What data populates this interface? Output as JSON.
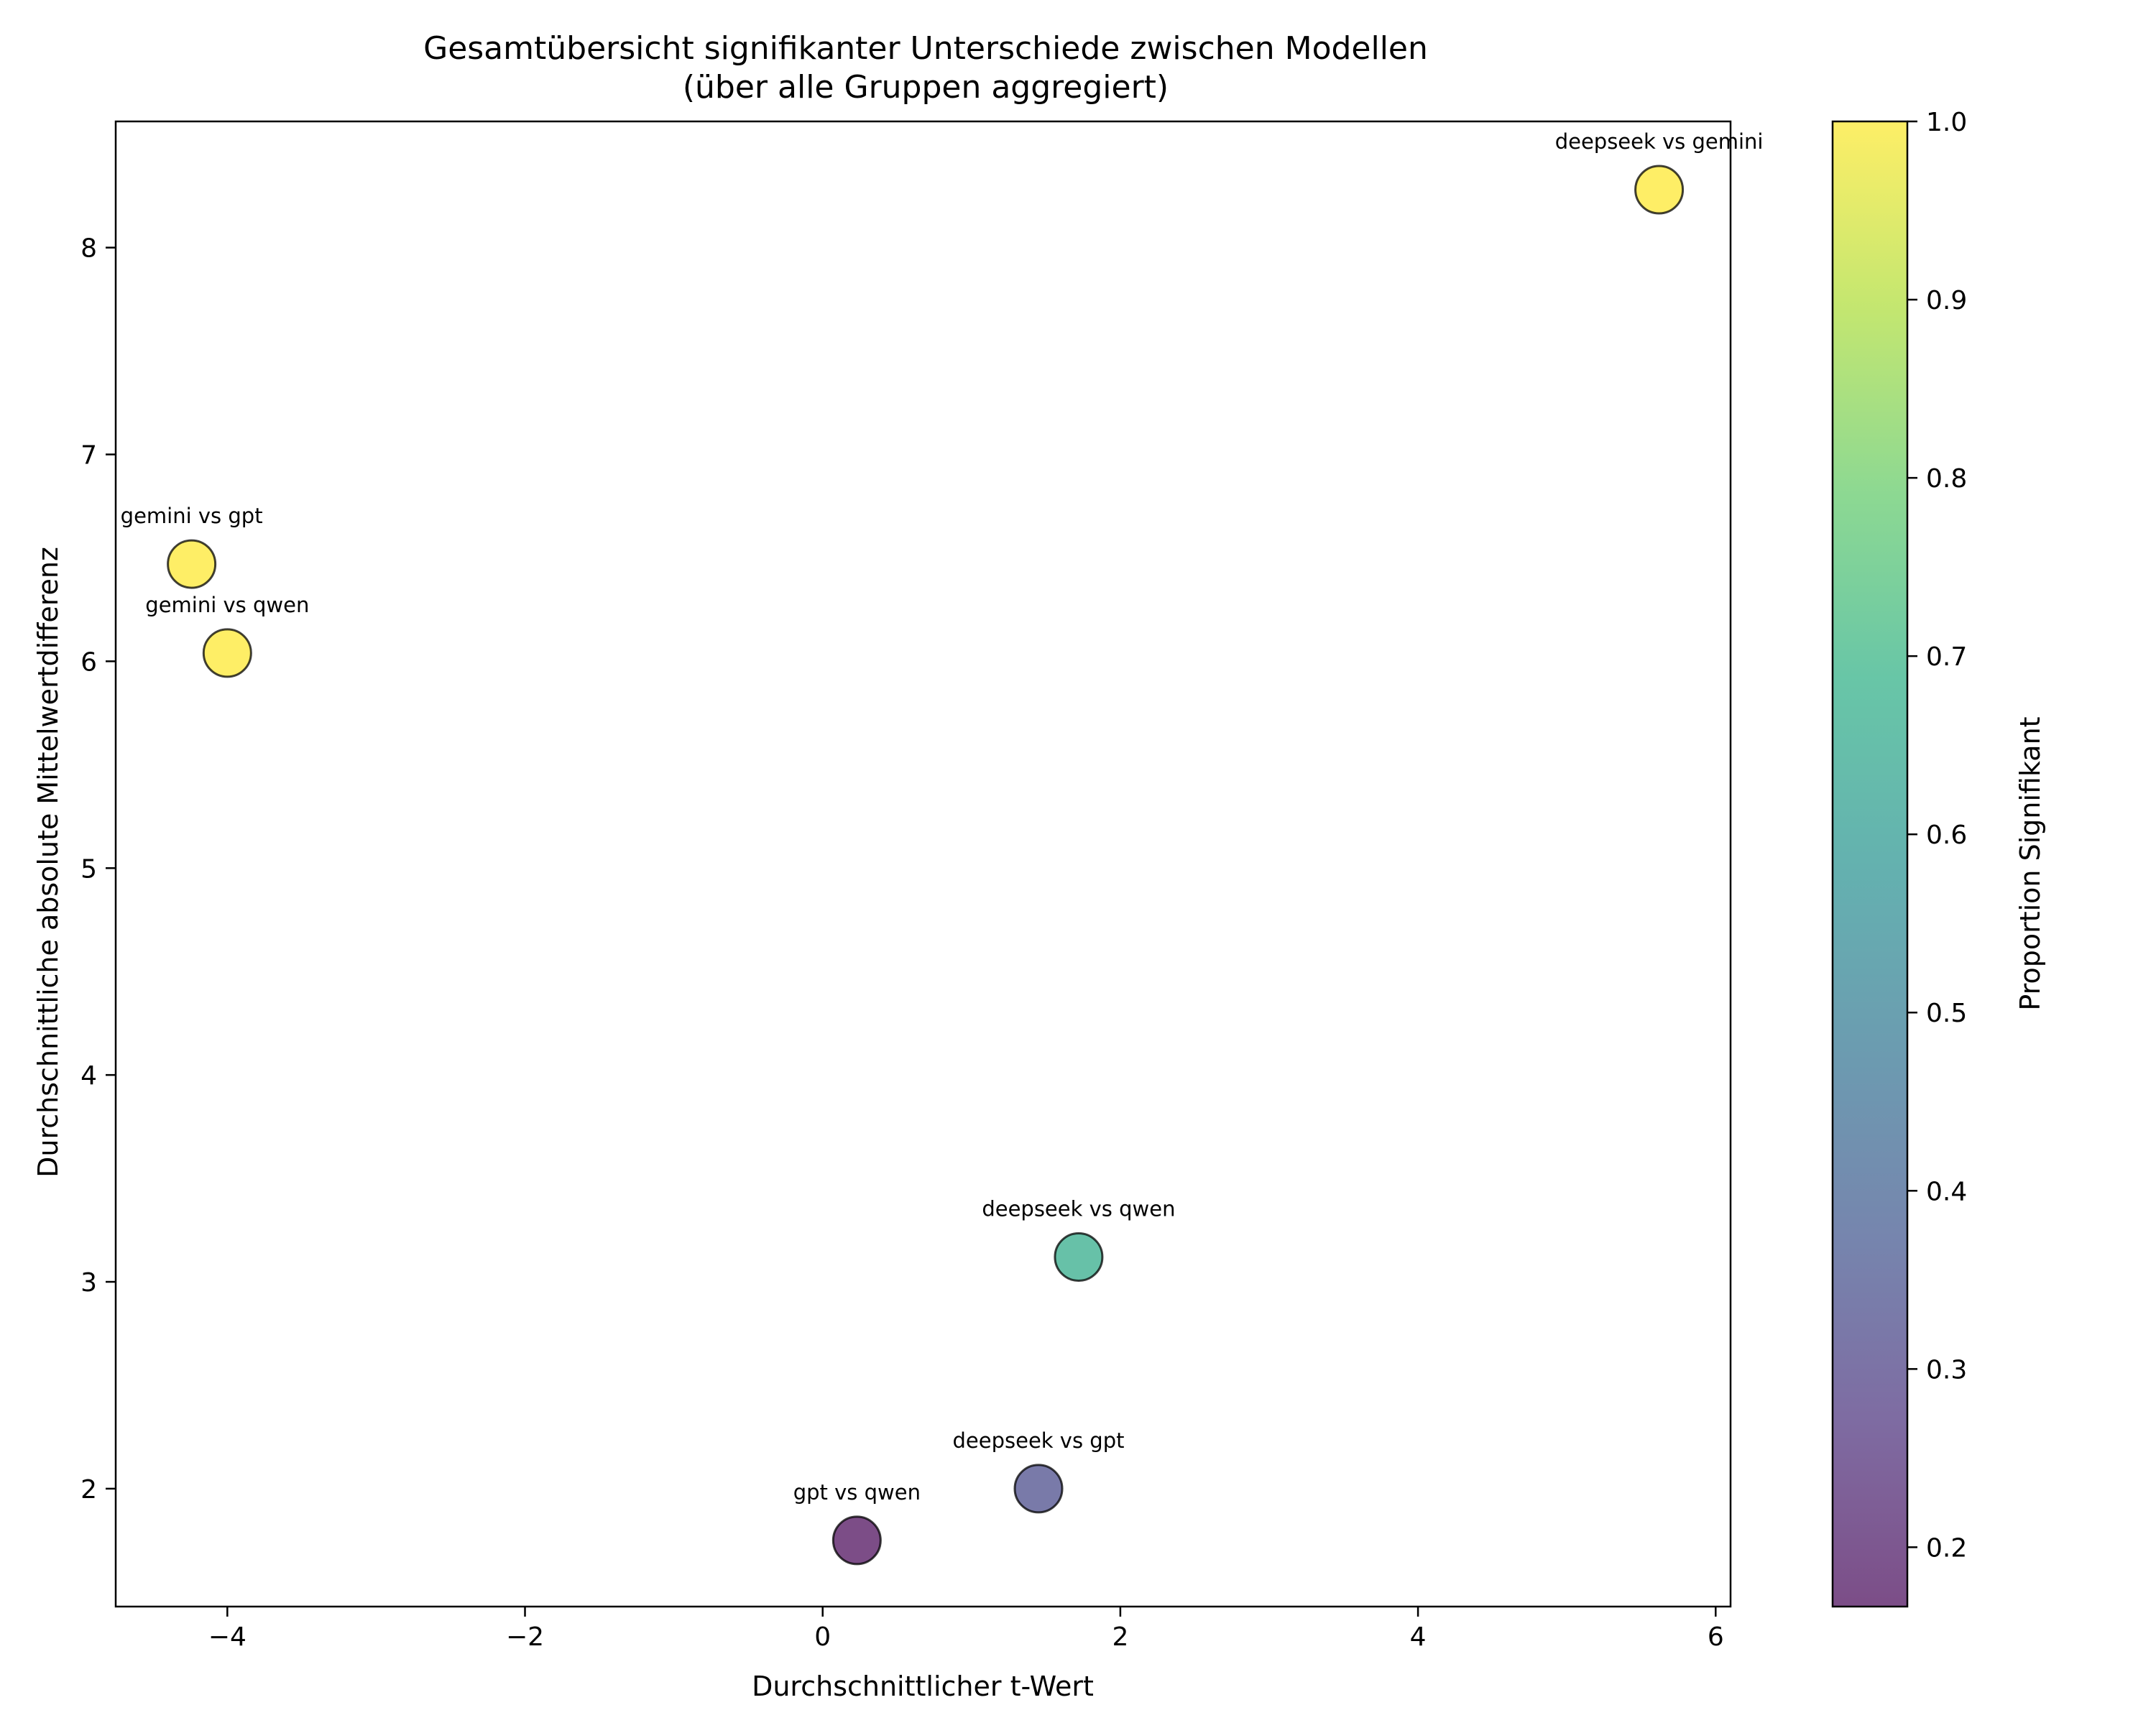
{
  "chart_data": {
    "type": "scatter",
    "title": "Gesamtübersicht signifikanter Unterschiede zwischen Modellen",
    "subtitle": "(über alle Gruppen aggregiert)",
    "xlabel": "Durchschnittlicher t-Wert",
    "ylabel": "Durchschnittliche absolute Mittelwertdifferenz",
    "xlim": [
      -4.75,
      6.1
    ],
    "ylim": [
      1.43,
      8.61
    ],
    "xticks": [
      -4,
      -2,
      0,
      2,
      4,
      6
    ],
    "xtick_labels": [
      "−4",
      "−2",
      "0",
      "2",
      "4",
      "6"
    ],
    "yticks": [
      2,
      3,
      4,
      5,
      6,
      7,
      8
    ],
    "ytick_labels": [
      "2",
      "3",
      "4",
      "5",
      "6",
      "7",
      "8"
    ],
    "grid": false,
    "colormap": "viridis",
    "points": [
      {
        "label": "deepseek vs gemini",
        "x": 5.62,
        "y": 8.28,
        "proportion": 1.0
      },
      {
        "label": "gemini vs gpt",
        "x": -4.24,
        "y": 6.47,
        "proportion": 1.0
      },
      {
        "label": "gemini vs qwen",
        "x": -4.0,
        "y": 6.04,
        "proportion": 1.0
      },
      {
        "label": "deepseek vs qwen",
        "x": 1.72,
        "y": 3.12,
        "proportion": 0.667
      },
      {
        "label": "deepseek vs gpt",
        "x": 1.45,
        "y": 2.0,
        "proportion": 0.333
      },
      {
        "label": "gpt vs qwen",
        "x": 0.23,
        "y": 1.75,
        "proportion": 0.167
      }
    ],
    "colorbar": {
      "label": "Proportion Signifikant",
      "range": [
        0.1667,
        1.0
      ],
      "ticks": [
        0.2,
        0.3,
        0.4,
        0.5,
        0.6,
        0.7,
        0.8,
        0.9,
        1.0
      ],
      "tick_labels": [
        "0.2",
        "0.3",
        "0.4",
        "0.5",
        "0.6",
        "0.7",
        "0.8",
        "0.9",
        "1.0"
      ]
    }
  }
}
